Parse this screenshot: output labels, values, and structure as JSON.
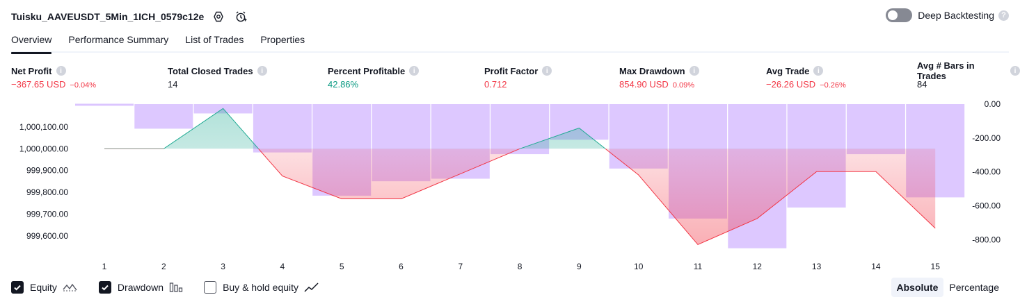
{
  "header": {
    "title": "Tuisku_AAVEUSDT_5Min_1ICH_0579c12e",
    "deep_backtesting_label": "Deep Backtesting",
    "deep_backtesting_on": false,
    "help_glyph": "?"
  },
  "tabs": [
    {
      "label": "Overview",
      "active": true
    },
    {
      "label": "Performance Summary",
      "active": false
    },
    {
      "label": "List of Trades",
      "active": false
    },
    {
      "label": "Properties",
      "active": false
    }
  ],
  "info_glyph": "i",
  "metrics": [
    {
      "label": "Net Profit",
      "value": "−367.65 USD",
      "pct": "−0.04%",
      "color": "red"
    },
    {
      "label": "Total Closed Trades",
      "value": "14",
      "pct": "",
      "color": "dark"
    },
    {
      "label": "Percent Profitable",
      "value": "42.86%",
      "pct": "",
      "color": "green"
    },
    {
      "label": "Profit Factor",
      "value": "0.712",
      "pct": "",
      "color": "red"
    },
    {
      "label": "Max Drawdown",
      "value": "854.90 USD",
      "pct": "0.09%",
      "color": "red"
    },
    {
      "label": "Avg Trade",
      "value": "−26.26 USD",
      "pct": "−0.26%",
      "color": "red"
    },
    {
      "label": "Avg # Bars in Trades",
      "value": "84",
      "pct": "",
      "color": "dark"
    }
  ],
  "colors": {
    "equity_line_up": "#22ab94",
    "equity_line_down": "#f23645",
    "drawdown_bar": "#d9c2ff",
    "text_red": "#f23645",
    "text_green": "#089981"
  },
  "chart_data": {
    "type": "line+bar",
    "x": [
      1,
      2,
      3,
      4,
      5,
      6,
      7,
      8,
      9,
      10,
      11,
      12,
      13,
      14,
      15
    ],
    "x_tick_labels": [
      "1",
      "2",
      "3",
      "4",
      "5",
      "6",
      "7",
      "8",
      "9",
      "10",
      "11",
      "12",
      "13",
      "14",
      "15"
    ],
    "equity": {
      "values": [
        1000000.0,
        1000000.0,
        1000185.0,
        999875.0,
        999770.0,
        999770.0,
        999885.0,
        1000000.0,
        1000095.0,
        999880.0,
        999560.0,
        999680.0,
        999895.0,
        999895.0,
        999635.0
      ],
      "baseline": 1000000.0,
      "ylim": [
        999520,
        1000205
      ],
      "tick_values": [
        1000100,
        1000000,
        999900,
        999800,
        999700,
        999600
      ],
      "tick_labels": [
        "1,000,100.00",
        "1,000,000.00",
        "999,900.00",
        "999,800.00",
        "999,700.00",
        "999,600.00"
      ]
    },
    "drawdown": {
      "values": [
        -10,
        -145,
        -55,
        -285,
        -540,
        -455,
        -440,
        -295,
        -210,
        -380,
        -675,
        -850,
        -610,
        -295,
        -550
      ],
      "ylim": [
        -880,
        0
      ],
      "tick_values": [
        0,
        -200,
        -400,
        -600,
        -800
      ],
      "tick_labels": [
        "0.00",
        "-200.00",
        "-400.00",
        "-600.00",
        "-800.00"
      ]
    },
    "grid": false
  },
  "legend": {
    "equity_label": "Equity",
    "equity_checked": true,
    "drawdown_label": "Drawdown",
    "drawdown_checked": true,
    "buyhold_label": "Buy & hold equity",
    "buyhold_checked": false
  },
  "units": {
    "absolute_label": "Absolute",
    "percentage_label": "Percentage",
    "selected": "Absolute"
  }
}
